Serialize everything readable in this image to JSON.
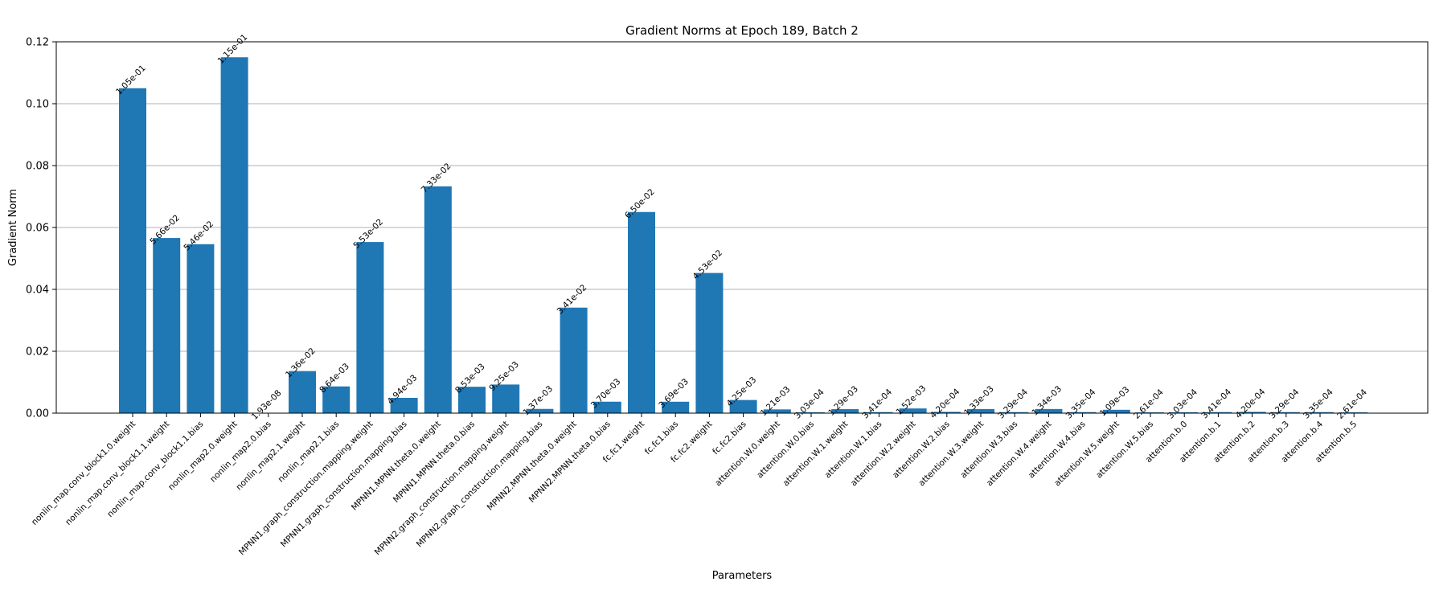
{
  "chart_data": {
    "type": "bar",
    "title": "Gradient Norms at Epoch 189, Batch 2",
    "xlabel": "Parameters",
    "ylabel": "Gradient Norm",
    "ylim": [
      0,
      0.12
    ],
    "yticks": [
      0.0,
      0.02,
      0.04,
      0.06,
      0.08,
      0.1,
      0.12
    ],
    "ytick_labels": [
      "0.00",
      "0.02",
      "0.04",
      "0.06",
      "0.08",
      "0.10",
      "0.12"
    ],
    "grid": "y",
    "bar_color": "#1f77b4",
    "categories": [
      "nonlin_map.conv_block1.0.weight",
      "nonlin_map.conv_block1.1.weight",
      "nonlin_map.conv_block1.1.bias",
      "nonlin_map2.0.weight",
      "nonlin_map2.0.bias",
      "nonlin_map2.1.weight",
      "nonlin_map2.1.bias",
      "MPNN1.graph_construction.mapping.weight",
      "MPNN1.graph_construction.mapping.bias",
      "MPNN1.MPNN.theta.0.weight",
      "MPNN1.MPNN.theta.0.bias",
      "MPNN2.graph_construction.mapping.weight",
      "MPNN2.graph_construction.mapping.bias",
      "MPNN2.MPNN.theta.0.weight",
      "MPNN2.MPNN.theta.0.bias",
      "fc.fc1.weight",
      "fc.fc1.bias",
      "fc.fc2.weight",
      "fc.fc2.bias",
      "attention.W.0.weight",
      "attention.W.0.bias",
      "attention.W.1.weight",
      "attention.W.1.bias",
      "attention.W.2.weight",
      "attention.W.2.bias",
      "attention.W.3.weight",
      "attention.W.3.bias",
      "attention.W.4.weight",
      "attention.W.4.bias",
      "attention.W.5.weight",
      "attention.W.5.bias",
      "attention.b.0",
      "attention.b.1",
      "attention.b.2",
      "attention.b.3",
      "attention.b.4",
      "attention.b.5"
    ],
    "values": [
      0.105,
      0.0566,
      0.0546,
      0.115,
      1.93e-08,
      0.0136,
      0.00864,
      0.0553,
      0.00494,
      0.0733,
      0.00853,
      0.00925,
      0.00137,
      0.0341,
      0.0037,
      0.065,
      0.00369,
      0.0453,
      0.00425,
      0.00121,
      0.000303,
      0.00129,
      0.000341,
      0.00152,
      0.00042,
      0.00133,
      0.000329,
      0.00134,
      0.000335,
      0.00109,
      0.000261,
      0.000303,
      0.000341,
      0.00042,
      0.000329,
      0.000335,
      0.000261
    ],
    "value_labels": [
      "1.05e-01",
      "5.66e-02",
      "5.46e-02",
      "1.15e-01",
      "1.93e-08",
      "1.36e-02",
      "8.64e-03",
      "5.53e-02",
      "4.94e-03",
      "7.33e-02",
      "8.53e-03",
      "9.25e-03",
      "1.37e-03",
      "3.41e-02",
      "3.70e-03",
      "6.50e-02",
      "3.69e-03",
      "4.53e-02",
      "4.25e-03",
      "1.21e-03",
      "3.03e-04",
      "1.29e-03",
      "3.41e-04",
      "1.52e-03",
      "4.20e-04",
      "1.33e-03",
      "3.29e-04",
      "1.34e-03",
      "3.35e-04",
      "1.09e-03",
      "2.61e-04",
      "3.03e-04",
      "3.41e-04",
      "4.20e-04",
      "3.29e-04",
      "3.35e-04",
      "2.61e-04"
    ]
  }
}
